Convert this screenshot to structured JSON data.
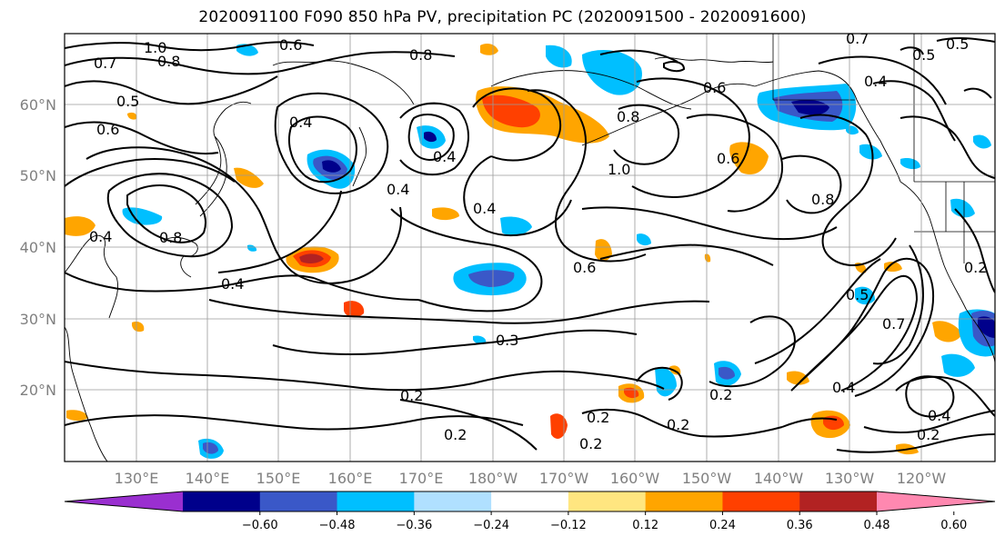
{
  "title": "2020091100 F090 850 hPa PV, precipitation PC (2020091500 - 2020091600)",
  "lat_labels": [
    "60°N",
    "50°N",
    "40°N",
    "30°N",
    "20°N"
  ],
  "lon_labels": [
    "130°E",
    "140°E",
    "150°E",
    "160°E",
    "170°E",
    "180°W",
    "170°W",
    "160°W",
    "150°W",
    "140°W",
    "130°W",
    "120°W"
  ],
  "contour_labels": [
    "1.0",
    "0.8",
    "0.7",
    "0.6",
    "0.5",
    "0.4",
    "0.3",
    "0.2"
  ],
  "colorbar": {
    "ticks": [
      "−0.60",
      "−0.48",
      "−0.36",
      "−0.24",
      "−0.12",
      "0.12",
      "0.24",
      "0.36",
      "0.48",
      "0.60"
    ],
    "colors": [
      "#9a2fd0",
      "#00008b",
      "#3a58c8",
      "#00bfff",
      "#b0e0ff",
      "#ffffff",
      "#ffe680",
      "#ffa500",
      "#ff4000",
      "#b22222",
      "#ff88b0"
    ]
  },
  "colors": {
    "pv_contour": "#000000",
    "grid": "#9a9a9a",
    "coast": "#000000"
  }
}
